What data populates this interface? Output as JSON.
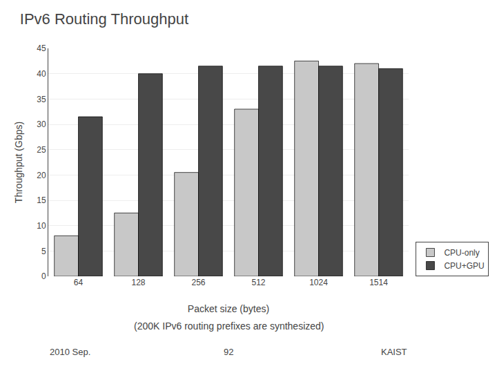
{
  "chart_data": {
    "type": "bar",
    "title": "IPv6 Routing Throughput",
    "subtitle": "(200K IPv6 routing prefixes are synthesized)",
    "annotations": [
      "2010 Sep.",
      "92",
      "KAIST"
    ],
    "x_label": "Packet size (bytes)",
    "y_label": "Throughput (Gbps)",
    "categories": [
      "64",
      "128",
      "256",
      "512",
      "1024",
      "1514"
    ],
    "series": [
      {
        "name": "CPU-only",
        "color": "#c8c8c8",
        "values": [
          8.0,
          12.5,
          20.5,
          33.0,
          42.5,
          42.0
        ]
      },
      {
        "name": "CPU+GPU",
        "color": "#484848",
        "values": [
          31.5,
          40.0,
          41.5,
          41.5,
          41.5,
          41.0
        ]
      }
    ],
    "ylim": [
      0,
      45
    ],
    "yticks": [
      0,
      5,
      10,
      15,
      20,
      25,
      30,
      35,
      40,
      45
    ],
    "grid": true,
    "legend": "lower right"
  }
}
